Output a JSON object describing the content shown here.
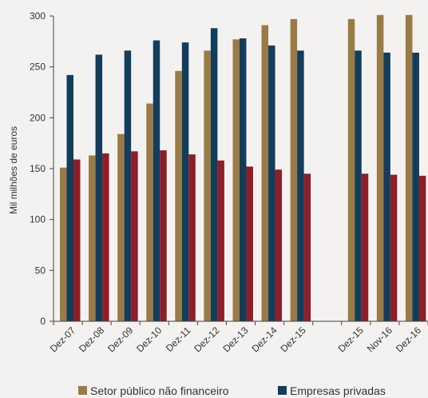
{
  "chart_data": {
    "type": "bar",
    "ylabel": "Mil milhões de euros",
    "ylim": [
      0,
      300
    ],
    "yticks": [
      0,
      50,
      100,
      150,
      200,
      250,
      300
    ],
    "grid": false,
    "legend_position": "bottom",
    "categories": [
      "Dez-07",
      "Dez-08",
      "Dez-09",
      "Dez-10",
      "Dez-11",
      "Dez-12",
      "Dez-13",
      "Dez-14",
      "Dez-15",
      "",
      "Dez-15",
      "Nov-16",
      "Dez-16"
    ],
    "series": [
      {
        "name": "Setor público não financeiro",
        "color": "#9a7b45",
        "values": [
          151,
          163,
          184,
          214,
          246,
          266,
          277,
          291,
          297,
          null,
          297,
          301,
          301
        ]
      },
      {
        "name": "Empresas privadas",
        "color": "#133d5c",
        "values": [
          242,
          262,
          266,
          276,
          274,
          288,
          278,
          271,
          266,
          null,
          266,
          264,
          264
        ]
      },
      {
        "name": "",
        "color": "#8c1f28",
        "values": [
          159,
          165,
          167,
          168,
          164,
          158,
          152,
          149,
          145,
          null,
          145,
          144,
          143
        ]
      }
    ]
  }
}
